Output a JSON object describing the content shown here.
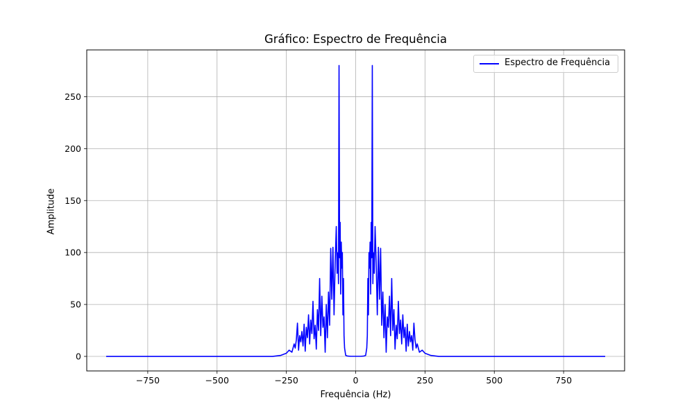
{
  "chart_data": {
    "type": "line",
    "title": "Gráfico: Espectro de Frequência",
    "xlabel": "Frequência (Hz)",
    "ylabel": "Amplitude",
    "xlim": [
      -970,
      970
    ],
    "ylim": [
      -14,
      295
    ],
    "xticks": [
      -750,
      -500,
      -250,
      0,
      250,
      500,
      750
    ],
    "xtick_labels": [
      "−750",
      "−500",
      "−250",
      "0",
      "250",
      "500",
      "750"
    ],
    "yticks": [
      0,
      50,
      100,
      150,
      200,
      250
    ],
    "ytick_labels": [
      "0",
      "50",
      "100",
      "150",
      "200",
      "250"
    ],
    "grid": true,
    "legend_position": "top-right",
    "color": "#0000ff",
    "series": [
      {
        "name": "Espectro de Frequência",
        "x": [
          -900,
          -300,
          -270,
          -250,
          -240,
          -230,
          -222,
          -218,
          -214,
          -210,
          -206,
          -202,
          -198,
          -194,
          -190,
          -186,
          -182,
          -178,
          -174,
          -170,
          -166,
          -162,
          -158,
          -154,
          -150,
          -146,
          -142,
          -138,
          -134,
          -130,
          -126,
          -122,
          -118,
          -114,
          -110,
          -106,
          -102,
          -98,
          -94,
          -90,
          -86,
          -82,
          -78,
          -74,
          -70,
          -67,
          -64,
          -62,
          -60,
          -58,
          -56,
          -54,
          -52,
          -50,
          -48,
          -46,
          -44,
          -42,
          -40,
          -36,
          -32,
          -28,
          -24,
          -18,
          -10,
          0,
          10,
          18,
          24,
          28,
          32,
          36,
          40,
          42,
          44,
          46,
          48,
          50,
          52,
          54,
          56,
          58,
          60,
          62,
          64,
          67,
          70,
          74,
          78,
          82,
          86,
          90,
          94,
          98,
          102,
          106,
          110,
          114,
          118,
          122,
          126,
          130,
          134,
          138,
          142,
          146,
          150,
          154,
          158,
          162,
          166,
          170,
          174,
          178,
          182,
          186,
          190,
          194,
          198,
          202,
          206,
          210,
          214,
          218,
          222,
          230,
          240,
          250,
          270,
          300,
          900
        ],
        "y": [
          0,
          0,
          1,
          3,
          6,
          4,
          12,
          8,
          16,
          32,
          6,
          20,
          14,
          24,
          10,
          31,
          5,
          28,
          18,
          40,
          12,
          35,
          22,
          53,
          17,
          30,
          7,
          45,
          25,
          75,
          20,
          58,
          28,
          38,
          4,
          50,
          18,
          62,
          30,
          104,
          55,
          105,
          40,
          90,
          125,
          80,
          100,
          70,
          280,
          95,
          129,
          60,
          110,
          85,
          100,
          40,
          75,
          20,
          8,
          1,
          0.5,
          0.3,
          0.2,
          0.1,
          0.1,
          0.1,
          0.1,
          0.1,
          0.2,
          0.3,
          0.5,
          1,
          8,
          20,
          75,
          40,
          100,
          85,
          110,
          60,
          129,
          95,
          280,
          70,
          100,
          80,
          125,
          90,
          40,
          105,
          55,
          104,
          30,
          62,
          18,
          50,
          4,
          38,
          28,
          58,
          20,
          75,
          25,
          45,
          7,
          30,
          17,
          53,
          22,
          35,
          12,
          40,
          18,
          28,
          5,
          31,
          10,
          24,
          14,
          20,
          6,
          32,
          16,
          8,
          12,
          4,
          6,
          3,
          1,
          0,
          0
        ]
      }
    ]
  }
}
